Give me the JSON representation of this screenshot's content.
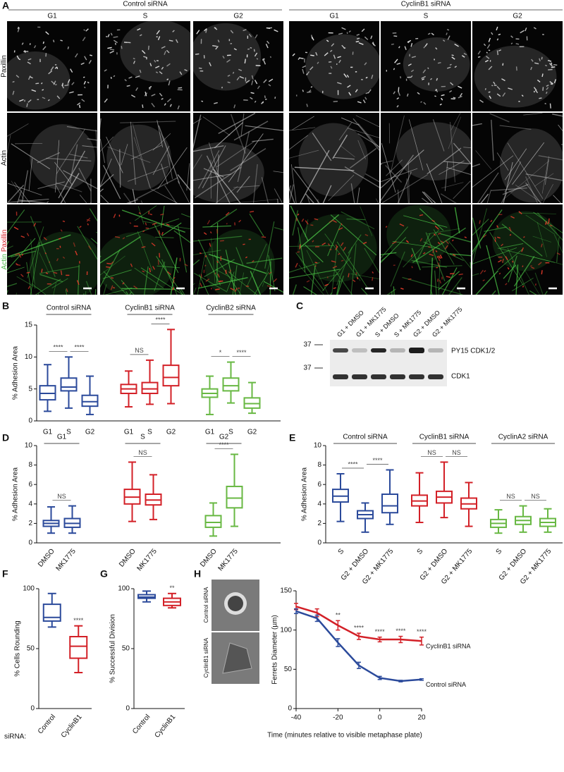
{
  "panel_labels": [
    "A",
    "B",
    "C",
    "D",
    "E",
    "F",
    "G",
    "H"
  ],
  "figure_a": {
    "conditions": [
      "Control siRNA",
      "CyclinB1 siRNA"
    ],
    "phases": [
      "G1",
      "S",
      "G2"
    ],
    "rows": [
      "Paxillin",
      "Actin"
    ],
    "merge_label": [
      "Actin",
      "Paxillin"
    ]
  },
  "blot_c": {
    "lanes": [
      "G1 + DMSO",
      "G1 + MK1775",
      "S + DMSO",
      "S + MK1775",
      "G2 + DMSO",
      "G2 + MK1775"
    ],
    "markers": [
      "37",
      "37"
    ],
    "bands": [
      "PY15 CDK1/2",
      "CDK1"
    ]
  },
  "figure_h": {
    "image_labels": [
      "Control siRNA",
      "CyclinB1 siRNA"
    ]
  },
  "chart_data": [
    {
      "type": "box",
      "ylabel": "% Adhesion Area",
      "ylim": [
        0,
        15
      ],
      "yticks": [
        0,
        5,
        10,
        15
      ],
      "groups": [
        {
          "name": "Control siRNA",
          "color": "#2b4a9b",
          "categories": [
            "G1",
            "S",
            "G2"
          ],
          "boxes": [
            {
              "min": 1.5,
              "q1": 3.3,
              "median": 4.3,
              "q3": 5.5,
              "max": 8.8
            },
            {
              "min": 2.0,
              "q1": 4.7,
              "median": 5.3,
              "q3": 6.7,
              "max": 10.0
            },
            {
              "min": 1.0,
              "q1": 2.3,
              "median": 3.0,
              "q3": 4.0,
              "max": 7.0
            }
          ],
          "significance": [
            "****",
            "****"
          ]
        },
        {
          "name": "CyclinB1 siRNA",
          "color": "#d32027",
          "categories": [
            "G1",
            "S",
            "G2"
          ],
          "boxes": [
            {
              "min": 2.2,
              "q1": 4.3,
              "median": 5.0,
              "q3": 5.7,
              "max": 7.8
            },
            {
              "min": 2.6,
              "q1": 4.3,
              "median": 5.0,
              "q3": 6.0,
              "max": 9.5
            },
            {
              "min": 2.7,
              "q1": 5.5,
              "median": 6.8,
              "q3": 8.7,
              "max": 14.3
            }
          ],
          "significance": [
            "NS",
            "****"
          ]
        },
        {
          "name": "CyclinB2 siRNA",
          "color": "#68b843",
          "categories": [
            "G1",
            "S",
            "G2"
          ],
          "boxes": [
            {
              "min": 1.0,
              "q1": 3.7,
              "median": 4.3,
              "q3": 5.0,
              "max": 7.0
            },
            {
              "min": 2.8,
              "q1": 4.7,
              "median": 5.5,
              "q3": 6.7,
              "max": 9.2
            },
            {
              "min": 1.2,
              "q1": 2.0,
              "median": 2.7,
              "q3": 3.6,
              "max": 6.0
            }
          ],
          "significance": [
            "*",
            "****"
          ]
        }
      ]
    },
    {
      "type": "box",
      "ylabel": "% Adhesion Area",
      "ylim": [
        0,
        10
      ],
      "yticks": [
        0,
        2,
        4,
        6,
        8,
        10
      ],
      "groups": [
        {
          "name": "G1",
          "color": "#2b4a9b",
          "categories": [
            "DMSO",
            "MK1775"
          ],
          "boxes": [
            {
              "min": 1.0,
              "q1": 1.7,
              "median": 2.0,
              "q3": 2.3,
              "max": 3.7
            },
            {
              "min": 1.0,
              "q1": 1.6,
              "median": 2.0,
              "q3": 2.5,
              "max": 3.8
            }
          ],
          "significance": [
            "NS"
          ]
        },
        {
          "name": "S",
          "color": "#d32027",
          "categories": [
            "DMSO",
            "MK1775"
          ],
          "boxes": [
            {
              "min": 2.2,
              "q1": 4.0,
              "median": 4.7,
              "q3": 5.5,
              "max": 8.3
            },
            {
              "min": 2.4,
              "q1": 3.9,
              "median": 4.4,
              "q3": 5.0,
              "max": 7.0
            }
          ],
          "significance": [
            "NS"
          ]
        },
        {
          "name": "G2",
          "color": "#68b843",
          "categories": [
            "DMSO",
            "MK1775"
          ],
          "boxes": [
            {
              "min": 0.7,
              "q1": 1.6,
              "median": 2.1,
              "q3": 2.8,
              "max": 4.1
            },
            {
              "min": 1.7,
              "q1": 3.6,
              "median": 4.6,
              "q3": 5.8,
              "max": 9.1
            }
          ],
          "significance": [
            "****"
          ]
        }
      ]
    },
    {
      "type": "box",
      "ylabel": "% Adhesion Area",
      "ylim": [
        0,
        10
      ],
      "yticks": [
        0,
        2,
        4,
        6,
        8,
        10
      ],
      "groups": [
        {
          "name": "Control siRNA",
          "color": "#2b4a9b",
          "categories": [
            "S",
            "G2 + DMSO",
            "G2 + MK1775"
          ],
          "boxes": [
            {
              "min": 2.2,
              "q1": 4.2,
              "median": 4.8,
              "q3": 5.5,
              "max": 7.1
            },
            {
              "min": 1.1,
              "q1": 2.5,
              "median": 2.9,
              "q3": 3.3,
              "max": 4.1
            },
            {
              "min": 1.9,
              "q1": 3.1,
              "median": 3.8,
              "q3": 5.0,
              "max": 7.5
            }
          ],
          "significance": [
            "****",
            "****"
          ]
        },
        {
          "name": "CyclinB1 siRNA",
          "color": "#d32027",
          "categories": [
            "S",
            "G2 + DMSO",
            "G2 + MK1775"
          ],
          "boxes": [
            {
              "min": 2.1,
              "q1": 3.8,
              "median": 4.3,
              "q3": 4.9,
              "max": 7.2
            },
            {
              "min": 2.6,
              "q1": 4.1,
              "median": 4.7,
              "q3": 5.3,
              "max": 8.3
            },
            {
              "min": 1.7,
              "q1": 3.5,
              "median": 4.0,
              "q3": 4.6,
              "max": 6.2
            }
          ],
          "significance": [
            "NS",
            "NS"
          ]
        },
        {
          "name": "CyclinA2 siRNA",
          "color": "#68b843",
          "categories": [
            "S",
            "G2 + DMSO",
            "G2 + MK1775"
          ],
          "boxes": [
            {
              "min": 1.0,
              "q1": 1.6,
              "median": 2.0,
              "q3": 2.4,
              "max": 3.4
            },
            {
              "min": 1.1,
              "q1": 1.9,
              "median": 2.3,
              "q3": 2.7,
              "max": 3.8
            },
            {
              "min": 1.1,
              "q1": 1.7,
              "median": 2.1,
              "q3": 2.5,
              "max": 3.5
            }
          ],
          "significance": [
            "NS",
            "NS"
          ]
        }
      ]
    },
    {
      "type": "box",
      "ylabel": "% Cells Rounding",
      "xlabel": "siRNA:",
      "ylim": [
        0,
        100
      ],
      "yticks": [
        0,
        50,
        100
      ],
      "groups": [
        {
          "color": "#2b4a9b",
          "categories": [
            "Control"
          ],
          "boxes": [
            {
              "min": 68,
              "q1": 73,
              "median": 76,
              "q3": 87,
              "max": 96
            }
          ],
          "significance": []
        },
        {
          "color": "#d32027",
          "categories": [
            "CyclinB1"
          ],
          "boxes": [
            {
              "min": 30,
              "q1": 42,
              "median": 52,
              "q3": 60,
              "max": 69
            }
          ],
          "significance": [
            "****"
          ]
        }
      ]
    },
    {
      "type": "box",
      "ylabel": "% Successful Division",
      "ylim": [
        0,
        100
      ],
      "yticks": [
        0,
        50,
        100
      ],
      "groups": [
        {
          "color": "#2b4a9b",
          "categories": [
            "Control"
          ],
          "boxes": [
            {
              "min": 89,
              "q1": 92,
              "median": 93,
              "q3": 95,
              "max": 98
            }
          ],
          "significance": []
        },
        {
          "color": "#d32027",
          "categories": [
            "CyclinB1"
          ],
          "boxes": [
            {
              "min": 84,
              "q1": 86,
              "median": 89,
              "q3": 92,
              "max": 96
            }
          ],
          "significance": [
            "**"
          ]
        }
      ]
    },
    {
      "type": "line",
      "ylabel": "Ferrets Diameter (µm)",
      "xlabel": "Time (minutes relative to visible metaphase plate)",
      "x": [
        -40,
        -30,
        -20,
        -10,
        0,
        10,
        20
      ],
      "xlim": [
        -40,
        20
      ],
      "xticks": [
        -40,
        -20,
        0,
        20
      ],
      "ylim": [
        0,
        150
      ],
      "yticks": [
        0,
        50,
        100,
        150
      ],
      "series": [
        {
          "name": "CyclinB1 siRNA",
          "color": "#d32027",
          "values": [
            130,
            122,
            106,
            92,
            88,
            88,
            86
          ],
          "errors": [
            4,
            5,
            6,
            4,
            3,
            4,
            5
          ],
          "significance": [
            null,
            null,
            "**",
            "****",
            "****",
            "****",
            "****"
          ]
        },
        {
          "name": "Control siRNA",
          "color": "#2b4a9b",
          "values": [
            124,
            115,
            84,
            55,
            39,
            35,
            37
          ],
          "errors": [
            3,
            4,
            5,
            4,
            2,
            1,
            1
          ]
        }
      ]
    }
  ]
}
